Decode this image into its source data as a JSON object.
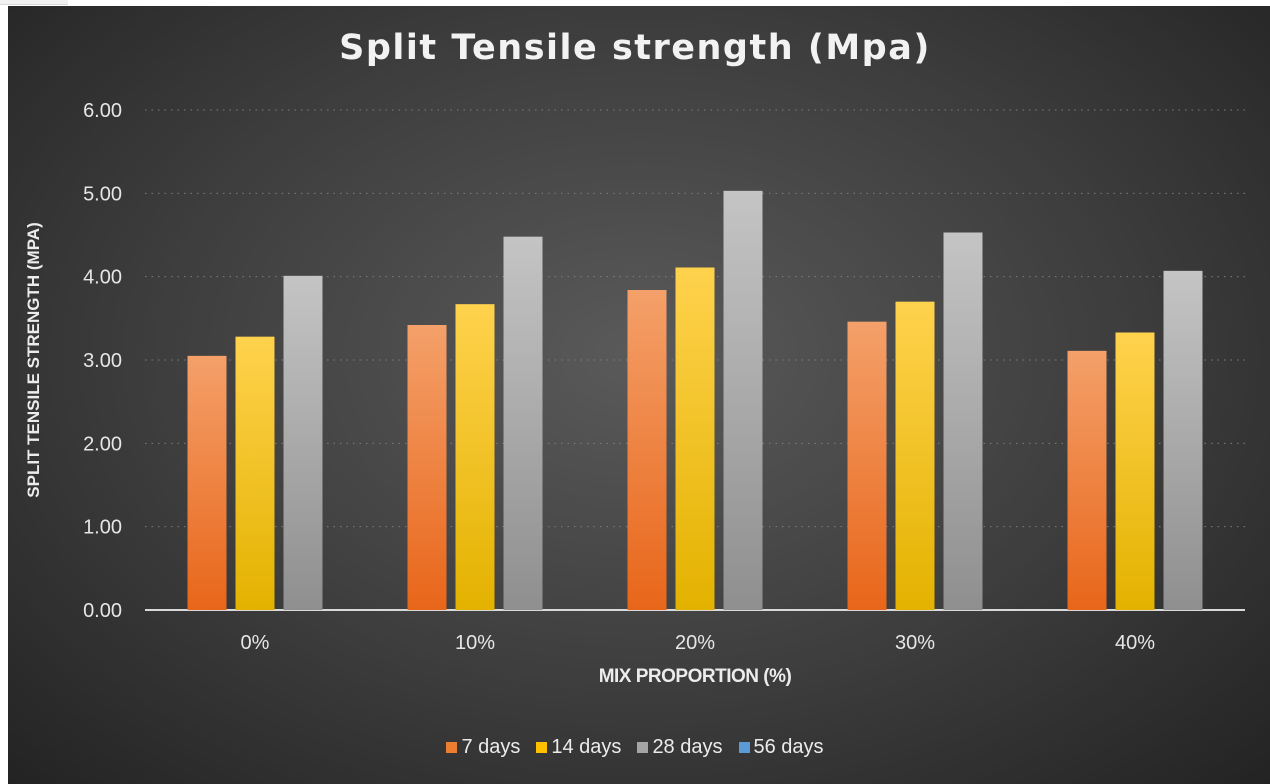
{
  "chart_data": {
    "type": "bar",
    "title": "Split Tensile strength (Mpa)",
    "xlabel": "MIX PROPORTION (%)",
    "ylabel": "SPLIT TENSILE STRENGTH (MPA)",
    "categories": [
      "0%",
      "10%",
      "20%",
      "30%",
      "40%"
    ],
    "yticks": [
      "0.00",
      "1.00",
      "2.00",
      "3.00",
      "4.00",
      "5.00",
      "6.00"
    ],
    "ylim": [
      0,
      6
    ],
    "grid": true,
    "legend_position": "bottom",
    "series": [
      {
        "name": "7 days",
        "color": "#ed7d31",
        "values": [
          3.05,
          3.42,
          3.84,
          3.46,
          3.11
        ]
      },
      {
        "name": "14 days",
        "color": "#ffc000",
        "values": [
          3.28,
          3.67,
          4.11,
          3.7,
          3.33
        ]
      },
      {
        "name": "28 days",
        "color": "#a5a5a5",
        "values": [
          4.01,
          4.48,
          5.03,
          4.53,
          4.07
        ]
      },
      {
        "name": "56 days",
        "color": "#5b9bd5",
        "values": [
          0,
          0,
          0,
          0,
          0
        ]
      }
    ]
  }
}
